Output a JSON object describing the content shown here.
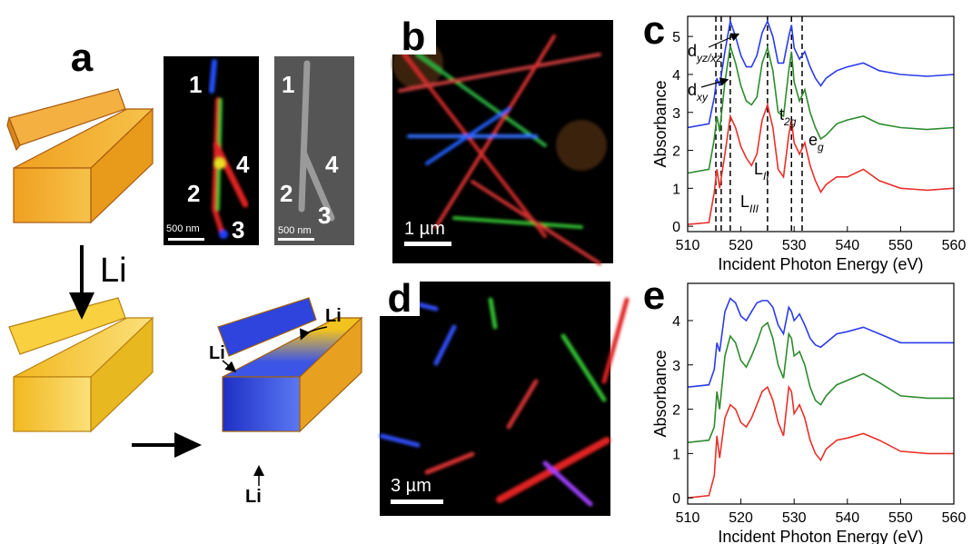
{
  "panels": {
    "a": {
      "label": "a",
      "arrow_label": "Li",
      "li_labels": [
        "Li",
        "Li",
        "Li"
      ],
      "image_numbers": [
        "1",
        "2",
        "3",
        "4"
      ],
      "sem_numbers": [
        "1",
        "2",
        "3",
        "4"
      ],
      "scale_bar": "500 nm",
      "sem_scale_bar": "500 nm"
    },
    "b": {
      "label": "b",
      "scale_bar": "1 µm"
    },
    "d": {
      "label": "d",
      "scale_bar": "3 µm"
    }
  },
  "chart_data": [
    {
      "type": "line",
      "panel_label": "c",
      "xlabel": "Incident Photon Energy (eV)",
      "ylabel": "Absorbance",
      "xlim": [
        510,
        560
      ],
      "ylim": [
        -0.14,
        5.53
      ],
      "xticks": [
        510,
        520,
        530,
        540,
        550,
        560
      ],
      "yticks": [
        0,
        1,
        2,
        3,
        4,
        5
      ],
      "vlines": [
        515.3,
        516.3,
        518,
        525,
        529.5,
        531.5
      ],
      "annotations": [
        {
          "text": "d",
          "sub": "yz/xz"
        },
        {
          "text": "d",
          "sub": "xy"
        },
        {
          "text": "t",
          "sub": "2g"
        },
        {
          "text": "e",
          "sub": "g"
        },
        {
          "text": "L",
          "sub": "II"
        },
        {
          "text": "L",
          "sub": "III"
        }
      ],
      "x": [
        510,
        514,
        515,
        515.5,
        516,
        517,
        518,
        519,
        520,
        521,
        522,
        523,
        524,
        525,
        526,
        527,
        528,
        529,
        529.5,
        530,
        531,
        532,
        533,
        534,
        535,
        536,
        538,
        540,
        543,
        546,
        550,
        555,
        560
      ],
      "series": [
        {
          "color": "#e8302a",
          "values": [
            0.05,
            0.1,
            0.9,
            1.5,
            1.0,
            1.9,
            2.9,
            2.6,
            2.1,
            1.8,
            1.6,
            1.9,
            2.8,
            3.2,
            2.6,
            1.5,
            1.3,
            2.4,
            2.8,
            2.2,
            1.9,
            2.2,
            1.6,
            1.2,
            0.9,
            1.1,
            1.3,
            1.3,
            1.5,
            1.2,
            1.0,
            0.95,
            1.0
          ]
        },
        {
          "color": "#2e8b2e",
          "values": [
            1.4,
            1.5,
            2.3,
            2.9,
            2.5,
            3.8,
            4.75,
            4.3,
            3.7,
            3.3,
            3.2,
            3.4,
            4.3,
            4.7,
            4.1,
            3.0,
            2.9,
            4.1,
            4.6,
            3.8,
            3.3,
            3.6,
            3.0,
            2.6,
            2.3,
            2.4,
            2.7,
            2.8,
            2.9,
            2.7,
            2.6,
            2.55,
            2.6
          ]
        },
        {
          "color": "#2b3ce8",
          "values": [
            2.6,
            2.7,
            3.4,
            3.9,
            3.7,
            4.6,
            5.4,
            5.0,
            4.5,
            4.2,
            4.2,
            4.5,
            5.1,
            5.4,
            5.0,
            4.3,
            4.3,
            5.0,
            5.3,
            4.7,
            4.4,
            4.6,
            4.2,
            3.9,
            3.7,
            3.9,
            4.1,
            4.2,
            4.3,
            4.1,
            4.0,
            3.95,
            4.0
          ]
        }
      ]
    },
    {
      "type": "line",
      "panel_label": "e",
      "xlabel": "Incident Photon Energy (eV)",
      "ylabel": "Absorbance",
      "xlim": [
        510,
        560
      ],
      "ylim": [
        -0.14,
        4.84
      ],
      "xticks": [
        510,
        520,
        530,
        540,
        550,
        560
      ],
      "yticks": [
        0,
        1,
        2,
        3,
        4
      ],
      "x": [
        510,
        514,
        515,
        515.5,
        516,
        517,
        518,
        519,
        520,
        521,
        522,
        523,
        524,
        525,
        526,
        527,
        528,
        529,
        529.5,
        530,
        531,
        532,
        533,
        534,
        535,
        536,
        538,
        540,
        543,
        546,
        550,
        555,
        560
      ],
      "series": [
        {
          "color": "#e8302a",
          "values": [
            0,
            0.05,
            0.5,
            1.4,
            0.9,
            1.8,
            2.1,
            2.0,
            1.7,
            1.6,
            1.8,
            2.1,
            2.4,
            2.5,
            2.2,
            1.7,
            1.4,
            2.5,
            2.4,
            1.9,
            2.1,
            1.8,
            1.3,
            1.0,
            0.85,
            1.1,
            1.3,
            1.35,
            1.45,
            1.3,
            1.05,
            1.0,
            1.0
          ]
        },
        {
          "color": "#2e8b2e",
          "values": [
            1.25,
            1.3,
            1.6,
            2.4,
            2.0,
            3.2,
            3.65,
            3.5,
            3.1,
            2.95,
            3.2,
            3.5,
            3.85,
            3.95,
            3.6,
            3.0,
            2.7,
            3.7,
            3.6,
            3.2,
            3.3,
            3.0,
            2.5,
            2.2,
            2.1,
            2.3,
            2.55,
            2.65,
            2.8,
            2.6,
            2.3,
            2.25,
            2.25
          ]
        },
        {
          "color": "#2b3ce8",
          "values": [
            2.5,
            2.55,
            2.9,
            3.5,
            3.3,
            4.2,
            4.5,
            4.4,
            4.1,
            4.0,
            4.2,
            4.4,
            4.45,
            4.45,
            4.3,
            3.9,
            3.7,
            4.3,
            4.2,
            4.0,
            4.15,
            3.9,
            3.6,
            3.45,
            3.4,
            3.5,
            3.7,
            3.75,
            3.85,
            3.7,
            3.5,
            3.5,
            3.5
          ]
        }
      ]
    }
  ]
}
